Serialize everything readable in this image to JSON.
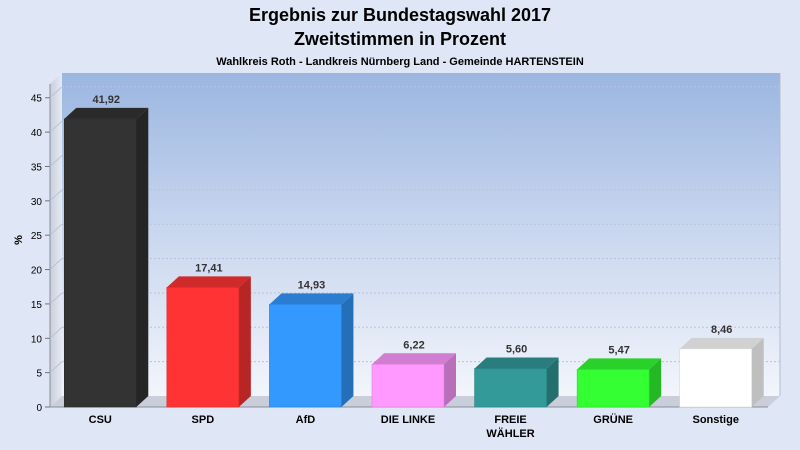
{
  "chart_data": {
    "type": "bar",
    "title": "Ergebnis zur Bundestagswahl 2017",
    "title_line2": "Zweitstimmen in Prozent",
    "subtitle": "Wahlkreis Roth - Landkreis Nürnberg Land - Gemeinde HARTENSTEIN",
    "ylabel": "%",
    "xlabel": "",
    "ylim": [
      0,
      47
    ],
    "yticks": [
      0,
      5,
      10,
      15,
      20,
      25,
      30,
      35,
      40,
      45
    ],
    "grid": true,
    "categories": [
      "CSU",
      "SPD",
      "AfD",
      "DIE LINKE",
      "FREIE WÄHLER",
      "GRÜNE",
      "Sonstige"
    ],
    "values": [
      41.92,
      17.41,
      14.93,
      6.22,
      5.6,
      5.47,
      8.46
    ],
    "value_labels": [
      "41,92",
      "17,41",
      "14,93",
      "6,22",
      "5,60",
      "5,47",
      "8,46"
    ],
    "colors": [
      "#333333",
      "#ff3333",
      "#3399ff",
      "#ff99ff",
      "#339999",
      "#33ff33",
      "#ffffff"
    ]
  }
}
